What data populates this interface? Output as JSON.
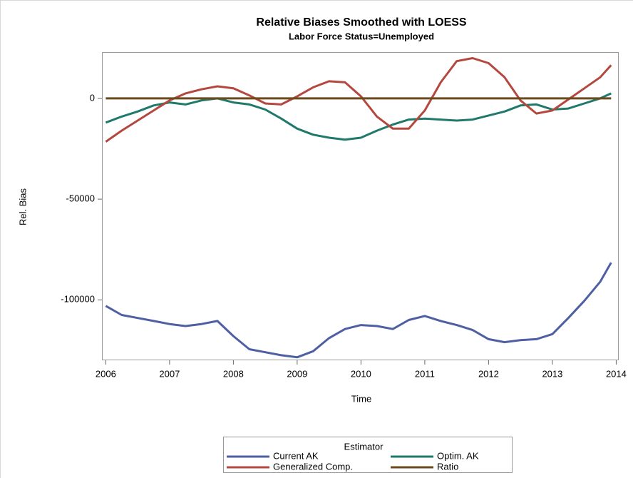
{
  "chart_data": {
    "type": "line",
    "title": "Relative Biases Smoothed with LOESS",
    "subtitle": "Labor Force Status=Unemployed",
    "x_label": "Time",
    "y_label": "Rel. Bias",
    "legend_title": "Estimator",
    "legend": "bottom",
    "x": [
      2006,
      2006.25,
      2006.5,
      2006.75,
      2007,
      2007.25,
      2007.5,
      2007.75,
      2008,
      2008.25,
      2008.5,
      2008.75,
      2009,
      2009.25,
      2009.5,
      2009.75,
      2010,
      2010.25,
      2010.5,
      2010.75,
      2011,
      2011.25,
      2011.5,
      2011.75,
      2012,
      2012.25,
      2012.5,
      2012.75,
      2013,
      2013.25,
      2013.5,
      2013.75,
      2013.92
    ],
    "series": [
      {
        "name": "Current AK",
        "color": "#4f5fa3",
        "values": [
          -103000,
          -107500,
          -109000,
          -110500,
          -112000,
          -113000,
          -112000,
          -110500,
          -118000,
          -124500,
          -126000,
          -127500,
          -128500,
          -125500,
          -119000,
          -114500,
          -112500,
          -113000,
          -114500,
          -110000,
          -108000,
          -110500,
          -112500,
          -115000,
          -119500,
          -121000,
          -120000,
          -119500,
          -117000,
          -109000,
          -100500,
          -91000,
          -81500
        ]
      },
      {
        "name": "Optim. AK",
        "color": "#1f7a6b",
        "values": [
          -12000,
          -9000,
          -6500,
          -3500,
          -2000,
          -3000,
          -1000,
          0,
          -2000,
          -3000,
          -5500,
          -10000,
          -15000,
          -18000,
          -19500,
          -20500,
          -19500,
          -16000,
          -13000,
          -10500,
          -10000,
          -10500,
          -11000,
          -10500,
          -8500,
          -6500,
          -3500,
          -3000,
          -5500,
          -5000,
          -2500,
          0,
          2500
        ]
      },
      {
        "name": "Generalized Comp.",
        "color": "#b4483f",
        "values": [
          -21500,
          -16000,
          -11000,
          -6000,
          -1000,
          2500,
          4500,
          6000,
          5000,
          1500,
          -2500,
          -3000,
          1000,
          5500,
          8500,
          8000,
          1000,
          -9000,
          -15000,
          -15000,
          -6000,
          8000,
          18500,
          20000,
          17500,
          10500,
          -1000,
          -7500,
          -6000,
          -500,
          5000,
          10500,
          16500
        ]
      },
      {
        "name": "Ratio",
        "color": "#6b4a1c",
        "values": [
          0,
          0,
          0,
          0,
          0,
          0,
          0,
          0,
          0,
          0,
          0,
          0,
          0,
          0,
          0,
          0,
          0,
          0,
          0,
          0,
          0,
          0,
          0,
          0,
          0,
          0,
          0,
          0,
          0,
          0,
          0,
          0,
          0
        ]
      }
    ],
    "xlim": [
      2005.94,
      2014.04
    ],
    "xticks": [
      2006,
      2007,
      2008,
      2009,
      2010,
      2011,
      2012,
      2013,
      2014
    ],
    "ylim": [
      -130000,
      23000
    ],
    "yticks": [
      -100000,
      -50000,
      0
    ]
  }
}
